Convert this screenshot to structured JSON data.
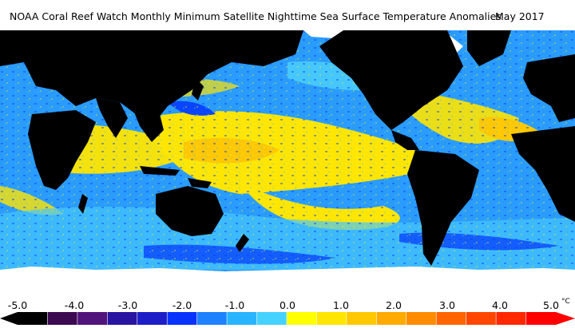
{
  "header": {
    "title": "NOAA Coral Reef Watch Monthly Minimum Satellite Nighttime Sea Surface Temperature Anomalies",
    "period": "May 2017"
  },
  "map": {
    "projection": "equirectangular",
    "land_color": "#000000",
    "ice_color": "#ffffff",
    "dominant_anomaly_colors": [
      "#1e96ff",
      "#46c8ff",
      "#ffe600",
      "#ffc800",
      "#0050ff"
    ]
  },
  "legend": {
    "ticks": [
      "-5.0",
      "-4.0",
      "-3.0",
      "-2.0",
      "-1.0",
      "0.0",
      "1.0",
      "2.0",
      "3.0",
      "4.0",
      "5.0"
    ],
    "unit": "°C",
    "colors": [
      "#000000",
      "#3c0a50",
      "#50147a",
      "#2814a0",
      "#1e1ec8",
      "#0a32ff",
      "#1e82ff",
      "#28b4ff",
      "#46d2ff",
      "#ffff00",
      "#ffe600",
      "#ffc800",
      "#ffaa00",
      "#ff8c00",
      "#ff6400",
      "#ff4600",
      "#ff2800",
      "#ff0000"
    ]
  }
}
